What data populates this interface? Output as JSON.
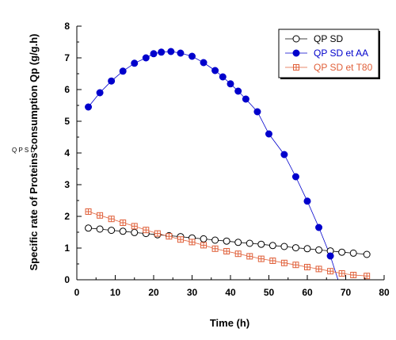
{
  "side_note": "Q P S D",
  "colors": {
    "series_1": "#000000",
    "series_2": "#0000cc",
    "series_3": "#e0603a"
  },
  "chart_data": {
    "type": "line",
    "xlabel": "Time (h)",
    "ylabel": "Specific rate of Proteins consumption Qp (g/g.h)",
    "xlim": [
      0,
      80
    ],
    "ylim": [
      0,
      8
    ],
    "xticks": [
      "0",
      "10",
      "20",
      "30",
      "40",
      "50",
      "60",
      "70",
      "80"
    ],
    "yticks": [
      "0",
      "1",
      "2",
      "3",
      "4",
      "5",
      "6",
      "7",
      "8"
    ],
    "grid": false,
    "legend_position": "top-right",
    "series": [
      {
        "name": "QP SD",
        "marker": "open-circle",
        "x": [
          3,
          6,
          9,
          12,
          15,
          18,
          21,
          24,
          27,
          30,
          33,
          36,
          39,
          42,
          45,
          48,
          51,
          54,
          57,
          60,
          63,
          66,
          69,
          72,
          75.5
        ],
        "y": [
          1.63,
          1.6,
          1.56,
          1.53,
          1.49,
          1.46,
          1.42,
          1.39,
          1.36,
          1.32,
          1.29,
          1.25,
          1.22,
          1.18,
          1.15,
          1.12,
          1.08,
          1.05,
          1.01,
          0.98,
          0.94,
          0.91,
          0.87,
          0.84,
          0.8
        ]
      },
      {
        "name": "QP SD et AA",
        "marker": "filled-circle",
        "x": [
          3,
          6,
          9,
          12,
          15,
          18,
          20,
          22,
          24.5,
          27,
          30,
          33,
          36,
          38,
          40,
          42,
          44,
          47,
          50,
          54,
          57,
          60,
          63,
          66
        ],
        "y": [
          5.45,
          5.9,
          6.27,
          6.58,
          6.83,
          7.0,
          7.13,
          7.18,
          7.2,
          7.15,
          7.05,
          6.85,
          6.6,
          6.4,
          6.18,
          5.95,
          5.7,
          5.3,
          4.6,
          3.95,
          3.25,
          2.48,
          1.65,
          0.75
        ],
        "line_extends_to": [
          68,
          0
        ]
      },
      {
        "name": "QP SD et T80",
        "marker": "open-square-cross",
        "x": [
          3,
          6,
          9,
          12,
          15,
          18,
          21,
          24,
          27,
          30,
          33,
          36,
          39,
          42,
          45,
          48,
          51,
          54,
          57,
          60,
          63,
          66,
          69,
          72,
          75.5
        ],
        "y": [
          2.15,
          2.03,
          1.92,
          1.8,
          1.69,
          1.57,
          1.46,
          1.37,
          1.27,
          1.19,
          1.09,
          0.98,
          0.9,
          0.82,
          0.74,
          0.66,
          0.6,
          0.53,
          0.47,
          0.4,
          0.34,
          0.27,
          0.2,
          0.15,
          0.12
        ]
      }
    ]
  }
}
